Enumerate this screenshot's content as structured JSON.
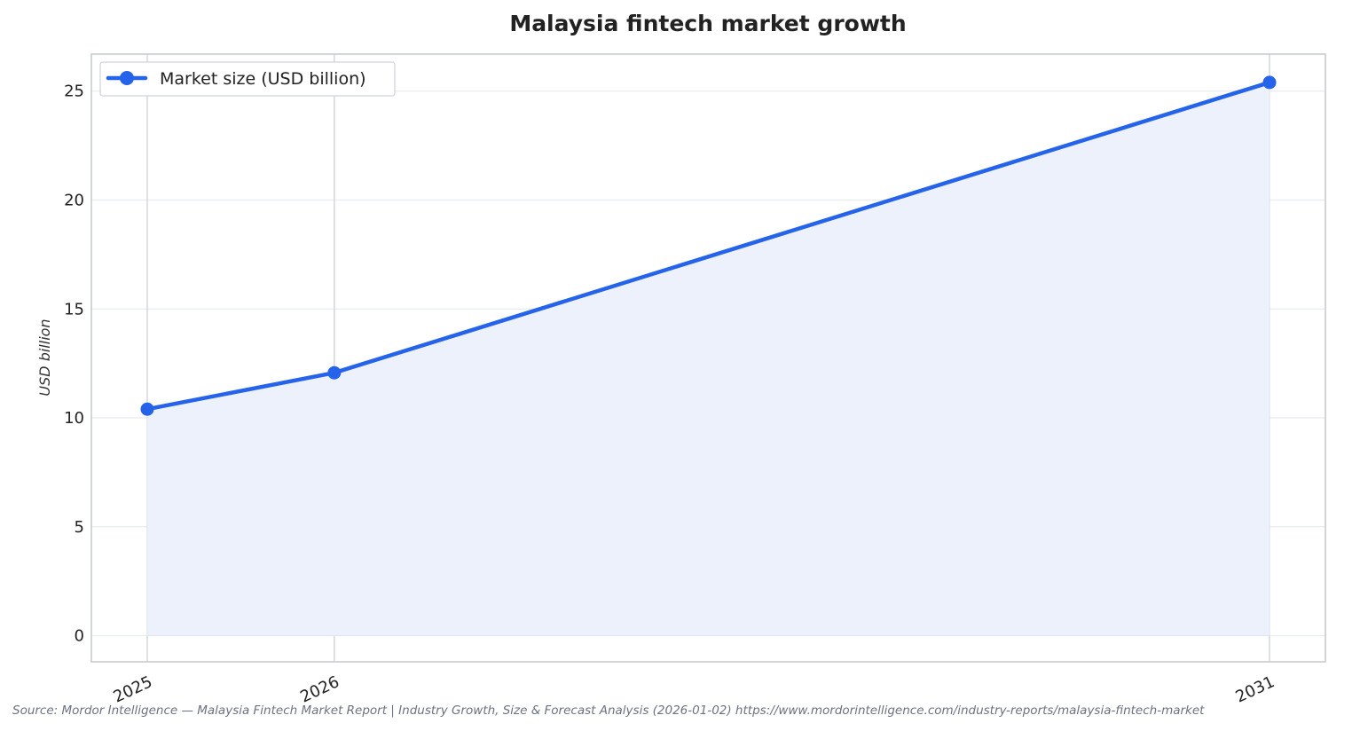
{
  "chart_data": {
    "type": "line",
    "title": "Malaysia fintech market growth",
    "xlabel": "",
    "ylabel": "USD billion",
    "categories": [
      "2025",
      "2026",
      "2031"
    ],
    "x": [
      2025,
      2026,
      2031
    ],
    "series": [
      {
        "name": "Market size (USD billion)",
        "values": [
          10.4,
          12.07,
          25.4
        ],
        "color": "#2563eb"
      }
    ],
    "ylim": [
      -1.2,
      26.7
    ],
    "yticks": [
      0,
      5,
      10,
      15,
      20,
      25
    ],
    "grid": true,
    "area_fill": true,
    "legend_position": "top-left",
    "source": "Source: Mordor Intelligence — Malaysia Fintech Market Report | Industry Growth, Size & Forecast Analysis (2026-01-02) https://www.mordorintelligence.com/industry-reports/malaysia-fintech-market"
  },
  "colors": {
    "line": "#2563eb",
    "area_fill": "#ecf1fc",
    "grid": "#e8ebef",
    "vertical_grid": "#c9cdd4",
    "frame": "#c4c8cf"
  }
}
